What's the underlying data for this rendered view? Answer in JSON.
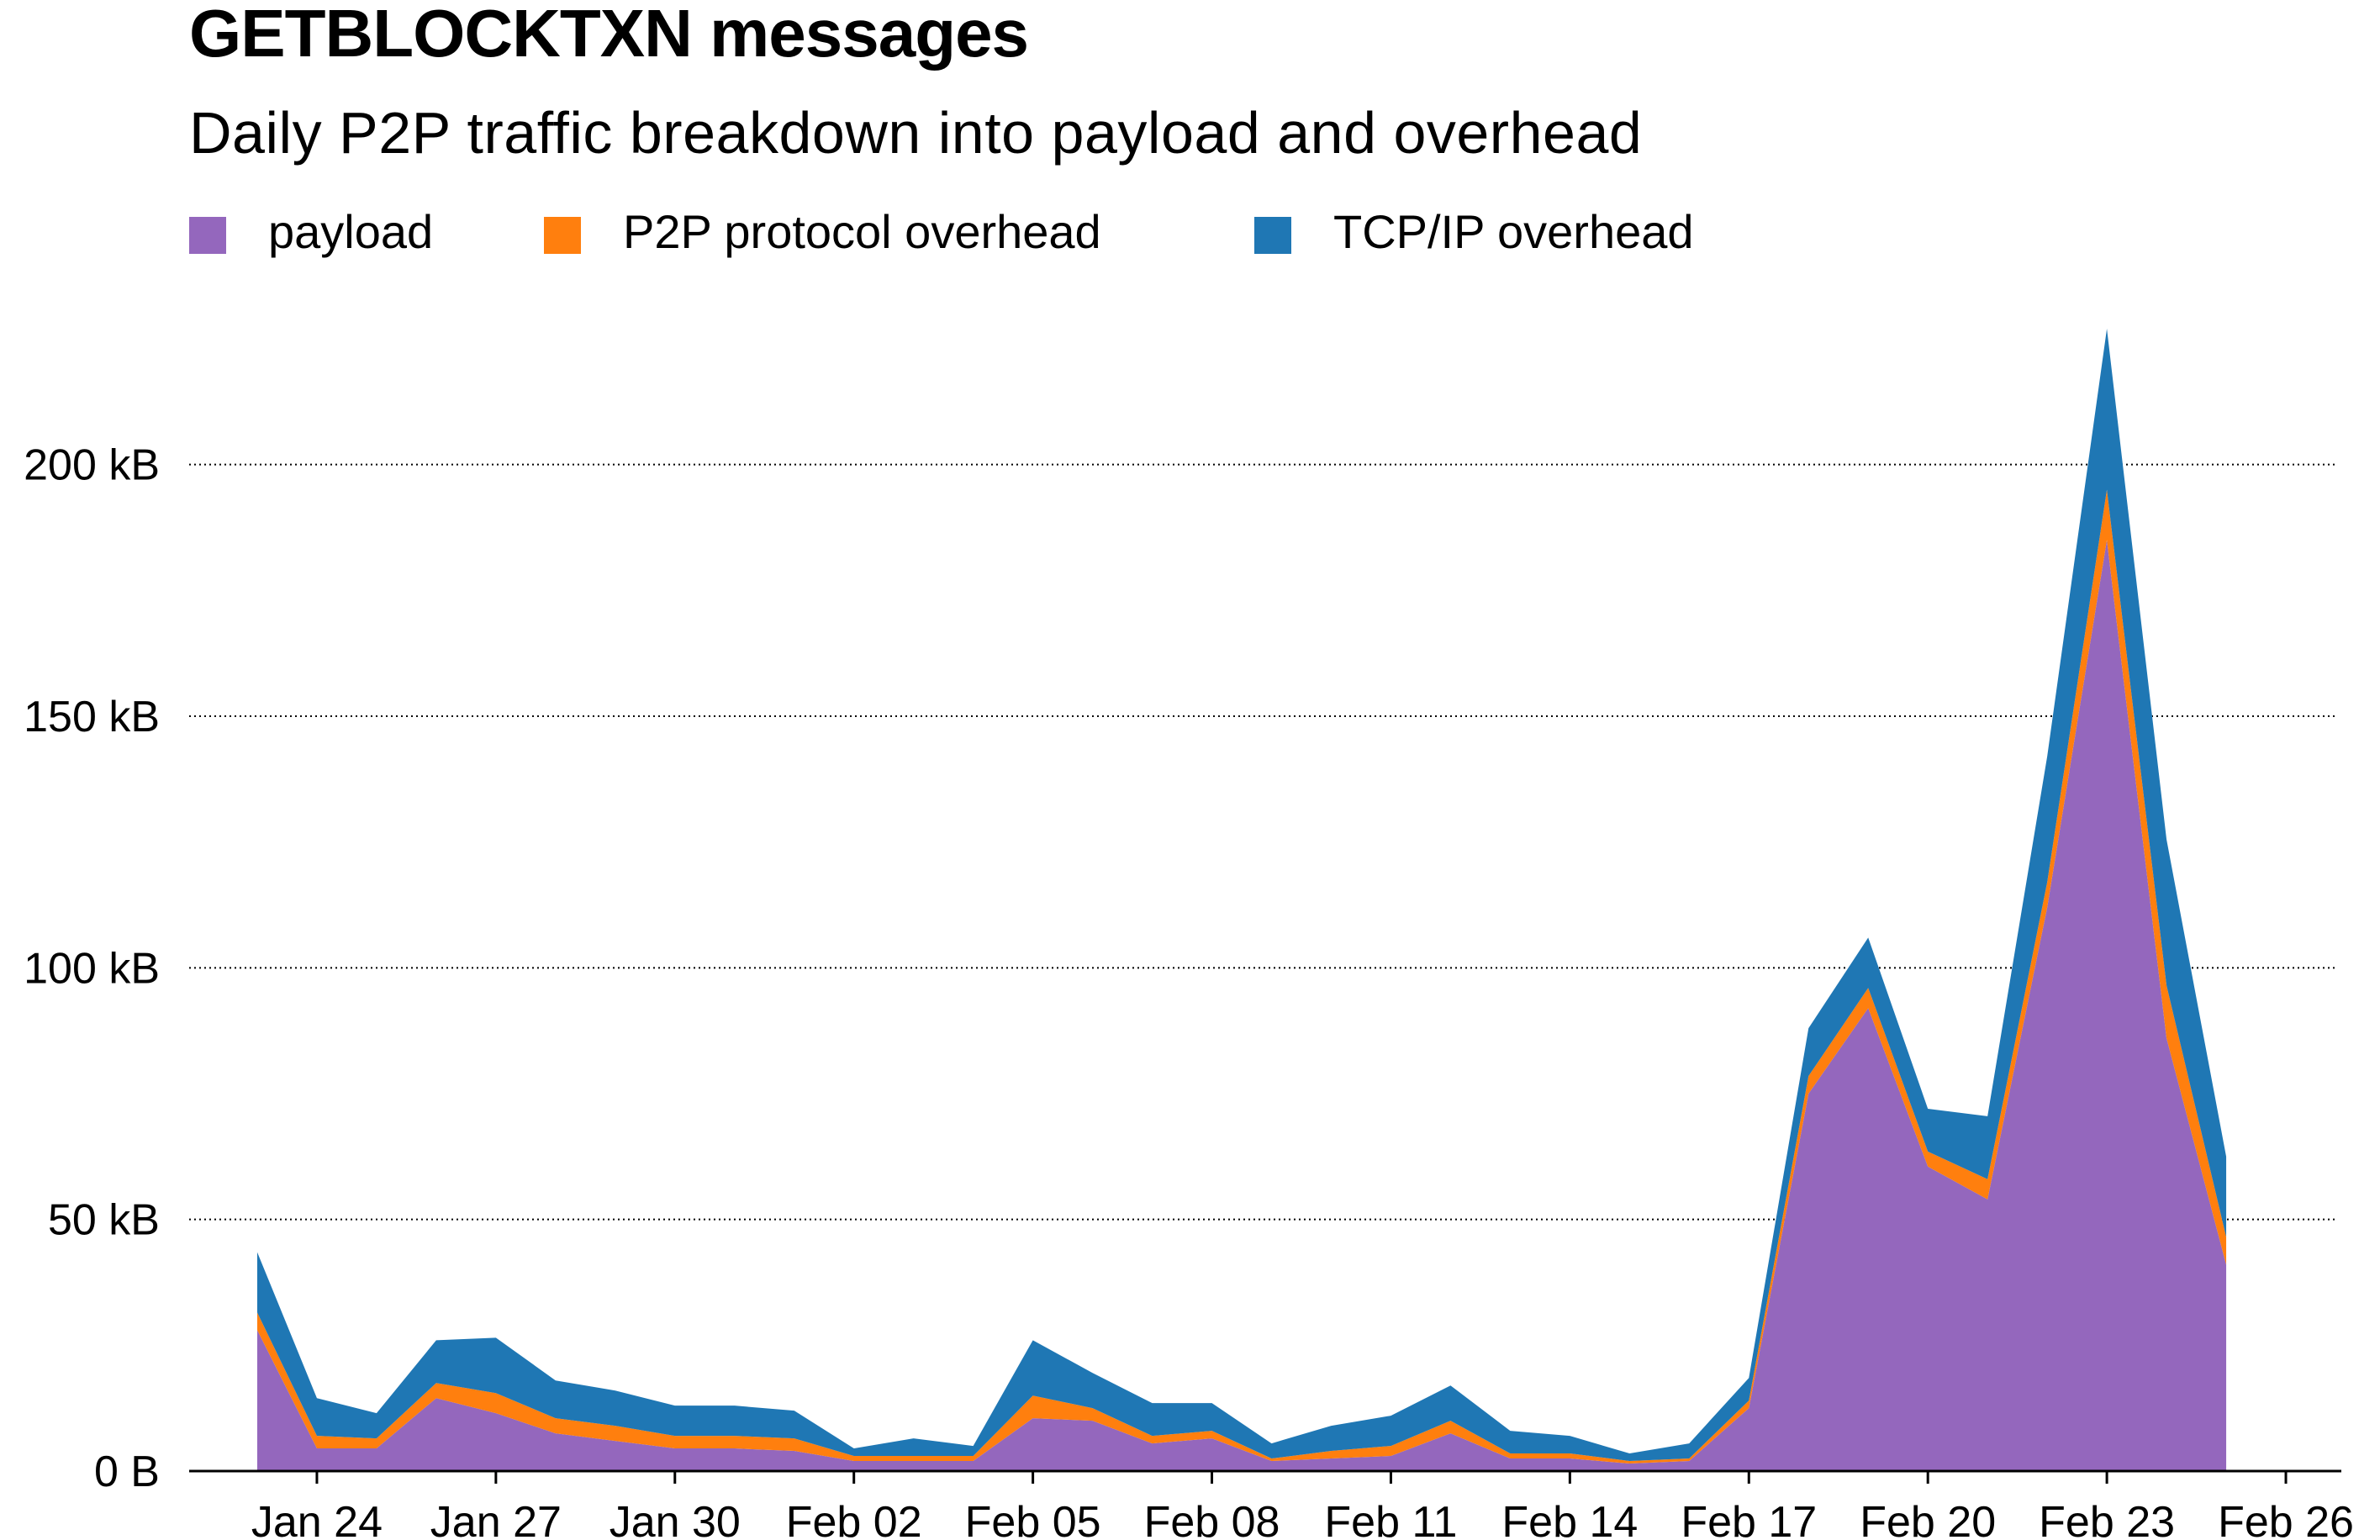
{
  "chart_data": {
    "type": "area",
    "stacked": true,
    "title": "GETBLOCKTXN messages",
    "subtitle": "Daily P2P traffic breakdown into payload and overhead",
    "xlabel": "",
    "ylabel": "",
    "x": [
      "Jan 23",
      "Jan 24",
      "Jan 25",
      "Jan 26",
      "Jan 27",
      "Jan 28",
      "Jan 29",
      "Jan 30",
      "Jan 31",
      "Feb 01",
      "Feb 02",
      "Feb 03",
      "Feb 04",
      "Feb 05",
      "Feb 06",
      "Feb 07",
      "Feb 08",
      "Feb 09",
      "Feb 10",
      "Feb 11",
      "Feb 12",
      "Feb 13",
      "Feb 14",
      "Feb 15",
      "Feb 16",
      "Feb 17",
      "Feb 18",
      "Feb 19",
      "Feb 20",
      "Feb 21",
      "Feb 22",
      "Feb 23",
      "Feb 24",
      "Feb 25"
    ],
    "x_ticks": [
      "Jan 24",
      "Jan 27",
      "Jan 30",
      "Feb 02",
      "Feb 05",
      "Feb 08",
      "Feb 11",
      "Feb 14",
      "Feb 17",
      "Feb 20",
      "Feb 23",
      "Feb 26"
    ],
    "x_domain": [
      "Jan 22",
      "Feb 27"
    ],
    "y_ticks": [
      {
        "value": 0,
        "label": "0 B"
      },
      {
        "value": 50,
        "label": "50 kB"
      },
      {
        "value": 100,
        "label": "100 kB"
      },
      {
        "value": 150,
        "label": "150 kB"
      },
      {
        "value": 200,
        "label": "200 kB"
      }
    ],
    "y_unit": "kB",
    "ylim": [
      0,
      228
    ],
    "grid": "horizontal-dotted",
    "legend_position": "top-left",
    "series": [
      {
        "name": "payload",
        "color": "#9467bd",
        "values": [
          28,
          4.5,
          4.5,
          14.5,
          11.5,
          7.5,
          6,
          4.5,
          4.5,
          4,
          2,
          2,
          2,
          10.5,
          10,
          5.5,
          6.5,
          2,
          2.5,
          3,
          7.5,
          2.5,
          2.5,
          1.5,
          2,
          12.5,
          75,
          92,
          60.5,
          54,
          112,
          185,
          86,
          41
        ]
      },
      {
        "name": "P2P protocol overhead",
        "color": "#ff7f0e",
        "values": [
          3.5,
          2.5,
          2,
          3,
          4,
          3,
          3,
          2.5,
          2.5,
          2.5,
          1,
          1,
          1,
          4.5,
          2.5,
          1.5,
          1.5,
          0.5,
          1.5,
          2,
          2.5,
          1,
          1,
          0.5,
          0.5,
          1.5,
          3.5,
          4,
          3,
          4,
          5,
          10,
          10.5,
          5.5
        ]
      },
      {
        "name": "TCP/IP overhead",
        "color": "#1f77b4",
        "values": [
          12,
          7.5,
          5,
          8.5,
          11,
          7.5,
          7,
          6,
          6,
          5.5,
          1.5,
          3.5,
          2,
          11,
          7,
          6.5,
          5.5,
          3,
          5,
          6,
          7,
          4.5,
          3.5,
          1.5,
          3,
          4.5,
          9.5,
          10,
          8.5,
          12.5,
          25,
          32,
          29,
          16
        ]
      }
    ]
  }
}
